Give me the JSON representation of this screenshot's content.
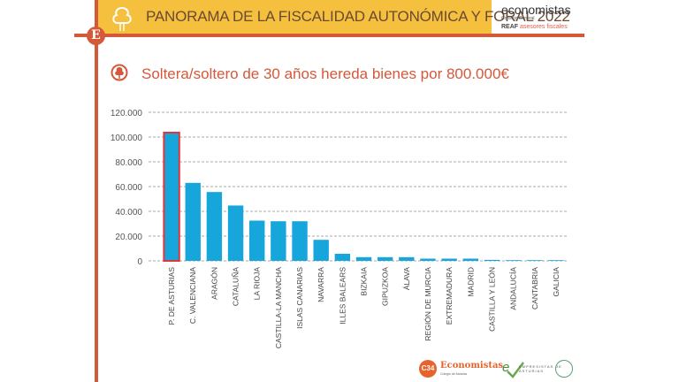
{
  "header": {
    "title": "PANORAMA DE LA FISCALIDAD AUTONÓMICA Y FORAL 2022",
    "badge_letter": "E",
    "brand": {
      "name": "economistas",
      "subtitle": "Consejo General",
      "reaf_prefix": "REAF",
      "reaf_suffix": "asesores fiscales"
    }
  },
  "colors": {
    "header_band": "#f6c03f",
    "accent_rule": "#d4583a",
    "bar": "#16a6dc",
    "highlight_border": "#e0353b",
    "title_text": "#d4583a"
  },
  "footer": {
    "logo1_mark": "C34",
    "logo1_name": "Economistas",
    "logo1_sub": "Colegio de Asturias",
    "logo2_name": "EMPRESISTAS DE ASTURIAS"
  },
  "chart_data": {
    "type": "bar",
    "title": "Soltera/soltero de 30 años hereda bienes por 800.000€",
    "xlabel": "",
    "ylabel": "",
    "ylim": [
      0,
      120000
    ],
    "yticks": [
      0,
      20000,
      40000,
      60000,
      80000,
      100000,
      120000
    ],
    "ytick_labels": [
      "0",
      "20.000",
      "40.000",
      "60.000",
      "80.000",
      "100.000",
      "120.000"
    ],
    "grid": true,
    "grid_style": "dashed-horizontal",
    "highlighted_category": "P. DE ASTURIAS",
    "categories": [
      "P. DE ASTURIAS",
      "C. VALENCIANA",
      "ARAGÓN",
      "CATALUÑA",
      "LA RIOJA",
      "CASTILLA-LA MANCHA",
      "ISLAS CANARIAS",
      "NAVARRA",
      "ILLES BALEARS",
      "BIZKAIA",
      "GIPUZKOA",
      "ÁLAVA",
      "REGIÓN DE MURCIA",
      "EXTREMADURA",
      "MADRID",
      "CASTILLA Y LEÓN",
      "ANDALUCÍA",
      "CANTABRIA",
      "GALICIA"
    ],
    "values": [
      103600,
      63000,
      55600,
      44700,
      32500,
      32000,
      32000,
      17000,
      5700,
      3000,
      3000,
      3000,
      1800,
      1800,
      1800,
      800,
      200,
      200,
      200
    ]
  }
}
